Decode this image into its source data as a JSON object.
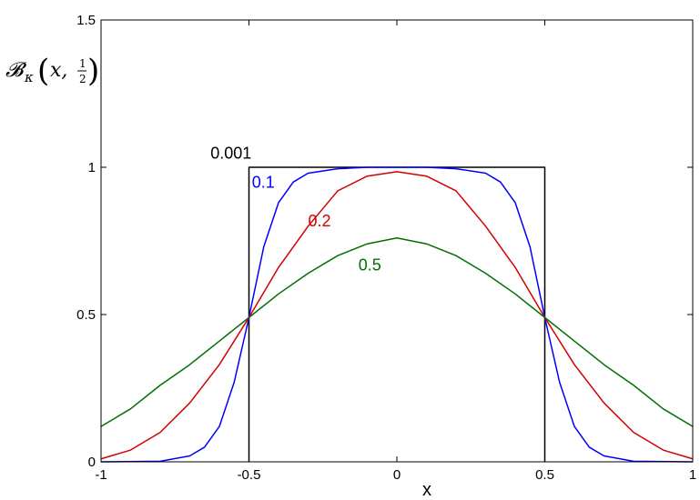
{
  "chart_data": {
    "type": "line",
    "xlabel": "x",
    "ylabel": {
      "symbol": "𝓑",
      "subscript": "κ",
      "open_paren": "(",
      "arg": "x,",
      "frac_num": "1",
      "frac_den": "2",
      "close_paren": ")"
    },
    "xlim": [
      -1,
      1
    ],
    "ylim": [
      0,
      1.5
    ],
    "x_ticks": [
      -1,
      -0.5,
      0,
      0.5,
      1
    ],
    "x_tick_labels": [
      "-1",
      "-0.5",
      "0",
      "0.5",
      "1"
    ],
    "y_ticks": [
      0,
      0.5,
      1,
      1.5
    ],
    "y_tick_labels": [
      "0",
      "0.5",
      "1",
      "1.5"
    ],
    "grid": false,
    "series": [
      {
        "name": "0.001",
        "color": "#000000",
        "x": [
          -0.5,
          -0.5,
          0.5,
          0.5
        ],
        "y": [
          0,
          1,
          1,
          0
        ]
      },
      {
        "name": "0.1",
        "color": "#0000ff",
        "x": [
          -1,
          -0.8,
          -0.7,
          -0.65,
          -0.6,
          -0.55,
          -0.5,
          -0.45,
          -0.4,
          -0.35,
          -0.3,
          -0.2,
          -0.1,
          0,
          0.1,
          0.2,
          0.3,
          0.35,
          0.4,
          0.45,
          0.5,
          0.55,
          0.6,
          0.65,
          0.7,
          0.8,
          1
        ],
        "y": [
          0,
          0.002,
          0.02,
          0.05,
          0.12,
          0.27,
          0.49,
          0.73,
          0.88,
          0.95,
          0.98,
          0.995,
          1.0,
          1.0,
          1.0,
          0.995,
          0.98,
          0.95,
          0.88,
          0.73,
          0.49,
          0.27,
          0.12,
          0.05,
          0.02,
          0.002,
          0
        ]
      },
      {
        "name": "0.2",
        "color": "#d40000",
        "x": [
          -1,
          -0.9,
          -0.8,
          -0.7,
          -0.6,
          -0.5,
          -0.4,
          -0.3,
          -0.2,
          -0.1,
          0,
          0.1,
          0.2,
          0.3,
          0.4,
          0.5,
          0.6,
          0.7,
          0.8,
          0.9,
          1
        ],
        "y": [
          0.01,
          0.04,
          0.1,
          0.2,
          0.33,
          0.49,
          0.66,
          0.8,
          0.92,
          0.97,
          0.985,
          0.97,
          0.92,
          0.8,
          0.66,
          0.49,
          0.33,
          0.2,
          0.1,
          0.04,
          0.01
        ]
      },
      {
        "name": "0.5",
        "color": "#007000",
        "x": [
          -1,
          -0.9,
          -0.8,
          -0.7,
          -0.6,
          -0.5,
          -0.4,
          -0.3,
          -0.2,
          -0.1,
          0,
          0.1,
          0.2,
          0.3,
          0.4,
          0.5,
          0.6,
          0.7,
          0.8,
          0.9,
          1
        ],
        "y": [
          0.12,
          0.18,
          0.26,
          0.33,
          0.41,
          0.49,
          0.57,
          0.64,
          0.7,
          0.74,
          0.76,
          0.74,
          0.7,
          0.64,
          0.57,
          0.49,
          0.41,
          0.33,
          0.26,
          0.18,
          0.12
        ]
      }
    ],
    "annotations": [
      {
        "text": "0.001",
        "color": "#000000",
        "x": -0.63,
        "y": 1.03
      },
      {
        "text": "0.1",
        "color": "#0000ff",
        "x": -0.49,
        "y": 0.93
      },
      {
        "text": "0.2",
        "color": "#d40000",
        "x": -0.3,
        "y": 0.8
      },
      {
        "text": "0.5",
        "color": "#007000",
        "x": -0.13,
        "y": 0.65
      }
    ]
  }
}
